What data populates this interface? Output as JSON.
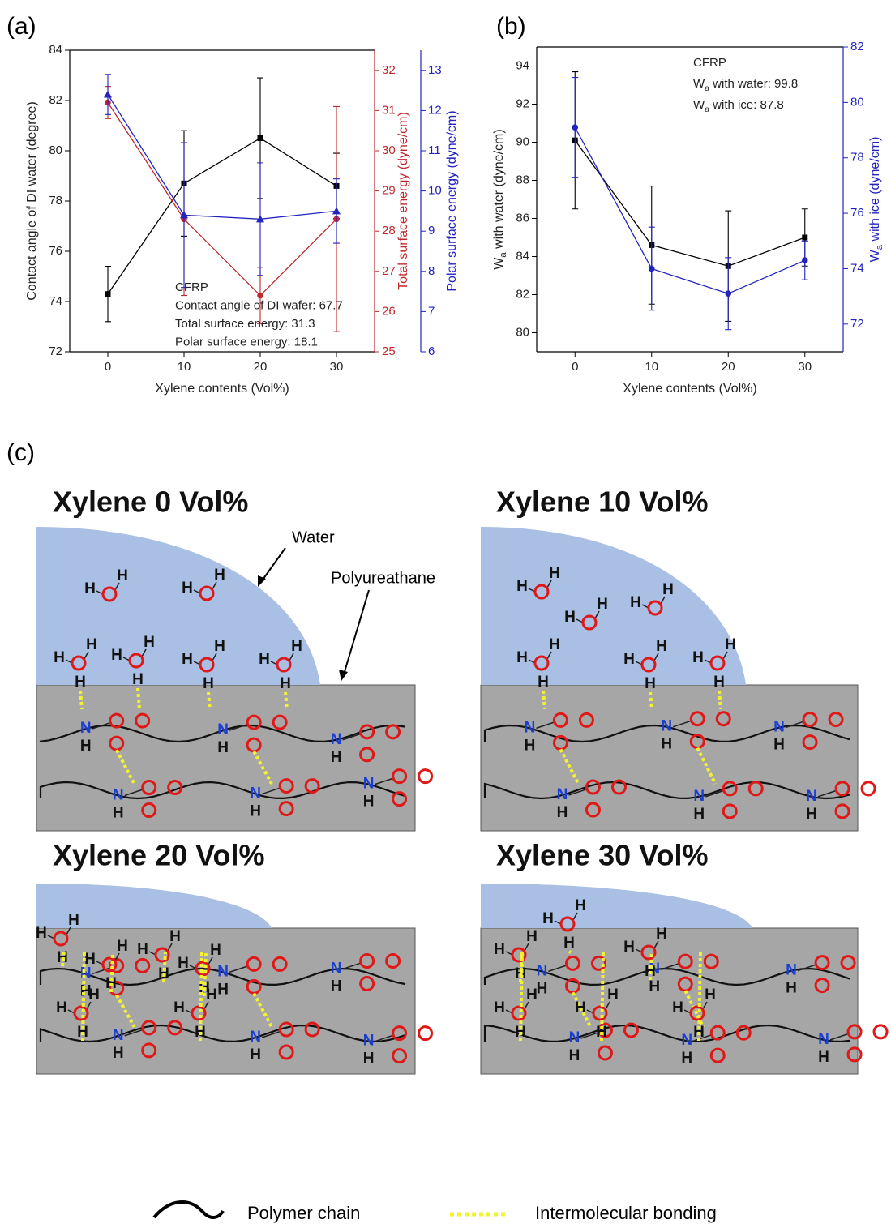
{
  "chart_data": [
    {
      "type": "line",
      "panel_label": "(a)",
      "x": [
        0,
        10,
        20,
        30
      ],
      "xlim": [
        -5,
        35
      ],
      "xticks": [
        0,
        10,
        20,
        30
      ],
      "xlabel": "Xylene contents (Vol%)",
      "ylabel": "Contact angle of DI water (degree)",
      "ylim": [
        72,
        84
      ],
      "yticks": [
        72,
        74,
        76,
        78,
        80,
        82,
        84
      ],
      "y2label": "Total surface energy (dyne/cm)",
      "y2lim": [
        25,
        32.5
      ],
      "y2ticks": [
        25,
        26,
        27,
        28,
        29,
        30,
        31,
        32
      ],
      "y3label": "Polar surface energy (dyne/cm)",
      "y3lim": [
        6,
        13.5
      ],
      "y3ticks": [
        6,
        7,
        8,
        9,
        10,
        11,
        12,
        13
      ],
      "series": [
        {
          "color": "#000000",
          "marker": "square",
          "values": [
            74.3,
            78.7,
            80.5,
            78.6
          ],
          "errors": [
            1.1,
            2.1,
            2.4,
            1.3
          ]
        },
        {
          "axis": "y2",
          "color": "#c0282d",
          "marker": "circle",
          "values": [
            31.2,
            28.3,
            26.4,
            28.3
          ],
          "errors": [
            0.4,
            1.9,
            0.7,
            2.8
          ]
        },
        {
          "axis": "y3",
          "color": "#2323c0",
          "marker": "triangle",
          "values": [
            12.4,
            9.4,
            9.3,
            9.5
          ],
          "errors": [
            0.5,
            1.8,
            1.4,
            0.8
          ]
        }
      ],
      "annotations": [
        "CFRP",
        "Contact angle of DI wafer: 67.7",
        "Total surface energy: 31.3",
        "Polar surface energy: 18.1"
      ]
    },
    {
      "type": "line",
      "panel_label": "(b)",
      "x": [
        0,
        10,
        20,
        30
      ],
      "xlim": [
        -5,
        35
      ],
      "xticks": [
        0,
        10,
        20,
        30
      ],
      "xlabel": "Xylene contents (Vol%)",
      "ylabel": "Wa with water (dyne/cm)",
      "ylim": [
        79,
        95
      ],
      "yticks": [
        80,
        82,
        84,
        86,
        88,
        90,
        92,
        94
      ],
      "y2label": "Wa with ice (dyne/cm)",
      "y2lim": [
        71,
        82
      ],
      "y2ticks": [
        72,
        74,
        76,
        78,
        80,
        82
      ],
      "series": [
        {
          "color": "#000000",
          "marker": "square",
          "values": [
            90.1,
            84.6,
            83.5,
            85.0
          ],
          "errors": [
            3.6,
            3.1,
            2.9,
            1.5
          ]
        },
        {
          "axis": "y2",
          "color": "#2323c0",
          "marker": "circle",
          "values": [
            79.1,
            74.0,
            73.1,
            74.3
          ],
          "errors": [
            1.8,
            1.5,
            1.3,
            0.7
          ]
        }
      ],
      "annotations": [
        "CFRP",
        "Wa with water: 99.8",
        "Wa with ice: 87.8"
      ]
    }
  ],
  "diagram": {
    "label": "(c)",
    "panels": [
      {
        "title": "Xylene 0 Vol%"
      },
      {
        "title": "Xylene 10 Vol%"
      },
      {
        "title": "Xylene 20 Vol%"
      },
      {
        "title": "Xylene 30 Vol%"
      }
    ],
    "water_label": "Water",
    "polymer_label": "Polyureathane",
    "atoms": {
      "H": "H",
      "N": "N"
    },
    "legend": [
      "Polymer chain",
      "Intermolecular bonding"
    ]
  }
}
